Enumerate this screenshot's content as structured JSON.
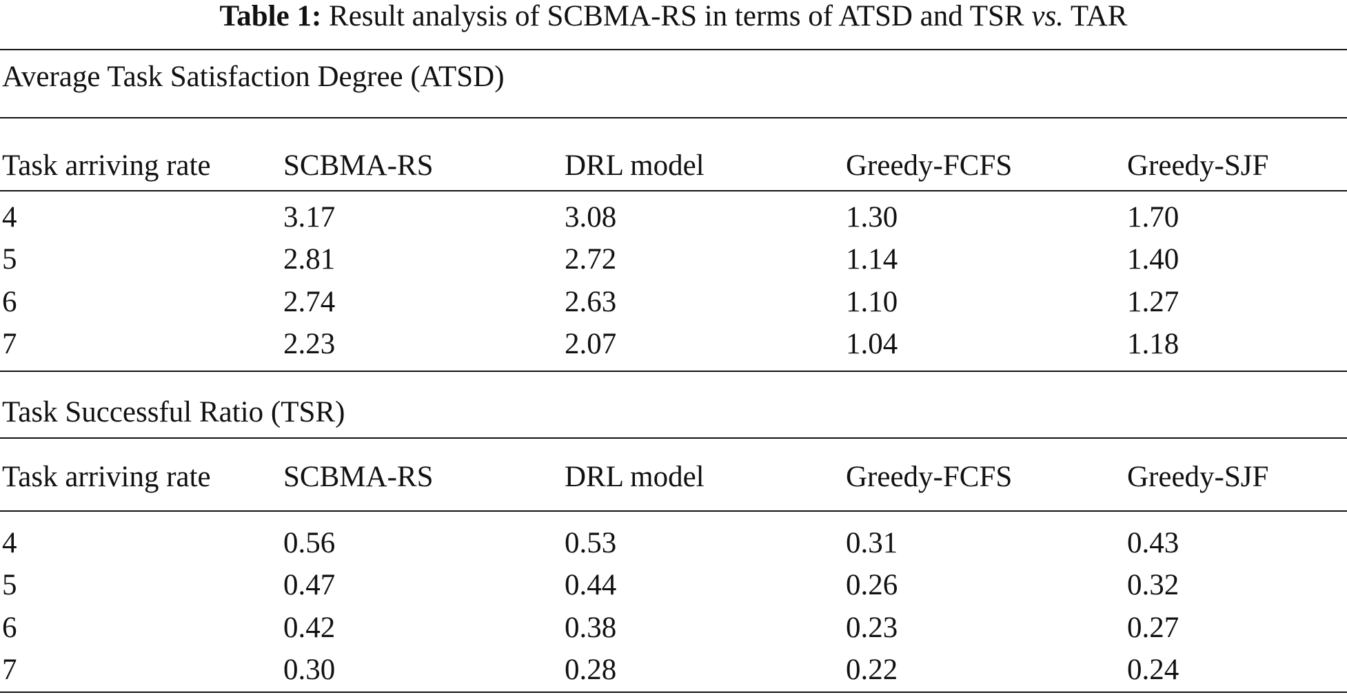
{
  "caption": {
    "label": "Table 1:",
    "text_before_vs": "Result analysis of SCBMA-RS in terms of ATSD and TSR",
    "vs": "vs.",
    "text_after_vs": "TAR"
  },
  "sections": [
    {
      "title": "Average Task Satisfaction Degree (ATSD)",
      "headers": [
        "Task arriving rate",
        "SCBMA-RS",
        "DRL model",
        "Greedy-FCFS",
        "Greedy-SJF"
      ],
      "rows": [
        [
          "4",
          "3.17",
          "3.08",
          "1.30",
          "1.70"
        ],
        [
          "5",
          "2.81",
          "2.72",
          "1.14",
          "1.40"
        ],
        [
          "6",
          "2.74",
          "2.63",
          "1.10",
          "1.27"
        ],
        [
          "7",
          "2.23",
          "2.07",
          "1.04",
          "1.18"
        ]
      ]
    },
    {
      "title": "Task Successful Ratio (TSR)",
      "headers": [
        "Task arriving rate",
        "SCBMA-RS",
        "DRL model",
        "Greedy-FCFS",
        "Greedy-SJF"
      ],
      "rows": [
        [
          "4",
          "0.56",
          "0.53",
          "0.31",
          "0.43"
        ],
        [
          "5",
          "0.47",
          "0.44",
          "0.26",
          "0.32"
        ],
        [
          "6",
          "0.42",
          "0.38",
          "0.23",
          "0.27"
        ],
        [
          "7",
          "0.30",
          "0.28",
          "0.22",
          "0.24"
        ]
      ]
    }
  ]
}
